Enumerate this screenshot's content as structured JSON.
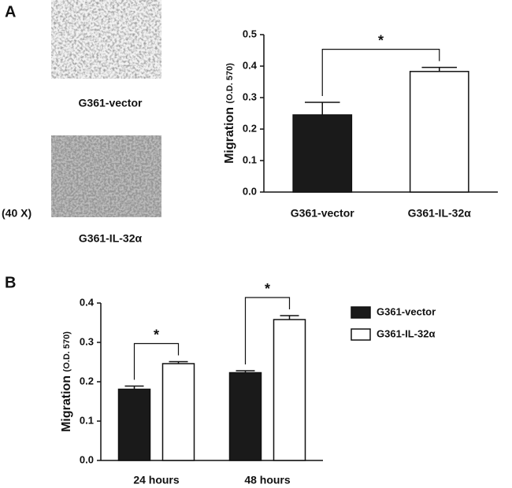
{
  "panel_labels": [
    "A",
    "B"
  ],
  "images": {
    "magnification": "(40 X)",
    "captions": [
      "G361-vector",
      "G361-IL-32α"
    ]
  },
  "chart_data": [
    {
      "type": "bar",
      "y_label": "Migration",
      "y_label_note": "(O.D. 570)",
      "categories": [
        "G361-vector",
        "G361-IL-32α"
      ],
      "values": [
        0.245,
        0.383
      ],
      "errors": [
        0.04,
        0.013
      ],
      "colors": [
        "#1a1a1a",
        "#ffffff"
      ],
      "ylim": [
        0,
        0.5
      ],
      "yticks": [
        {
          "value": 0,
          "label": "0.0"
        },
        0.1,
        0.2,
        0.3,
        0.4,
        0.5
      ],
      "annotations": [
        "*"
      ]
    },
    {
      "type": "grouped_bar",
      "y_label": "Migration",
      "y_label_note": "(O.D. 570)",
      "categories": [
        "24 hours",
        "48 hours"
      ],
      "series": [
        {
          "name": "G361-vector",
          "color": "#1a1a1a",
          "values": [
            0.181,
            0.223
          ],
          "errors": [
            0.008,
            0.005
          ]
        },
        {
          "name": "G361-IL-32α",
          "color": "#ffffff",
          "values": [
            0.246,
            0.358
          ],
          "errors": [
            0.005,
            0.01
          ]
        }
      ],
      "ylim": [
        0,
        0.4
      ],
      "yticks": [
        {
          "value": 0,
          "label": "0.0"
        },
        0.1,
        0.2,
        0.3,
        0.4
      ],
      "annotations": [
        "*",
        "*"
      ]
    }
  ]
}
